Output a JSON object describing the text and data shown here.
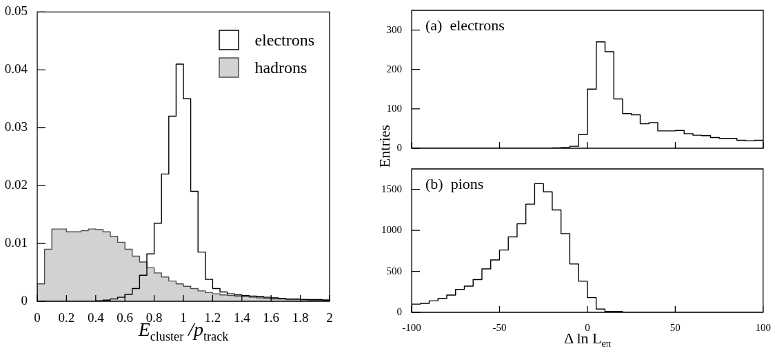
{
  "chart_data": [
    {
      "type": "histogram",
      "xlabel": "E$_{cluster}$ /p$_{track}$",
      "legend": "top right",
      "grid": false,
      "bins": [
        0,
        0.05,
        0.1,
        0.15,
        0.2,
        0.25,
        0.3,
        0.35,
        0.4,
        0.45,
        0.5,
        0.55,
        0.6,
        0.65,
        0.7,
        0.75,
        0.8,
        0.85,
        0.9,
        0.95,
        1,
        1.05,
        1.1,
        1.15,
        1.2,
        1.25,
        1.3,
        1.35,
        1.4,
        1.45,
        1.5,
        1.55,
        1.6,
        1.65,
        1.7,
        1.75,
        1.8,
        1.85,
        1.9,
        1.95,
        2
      ],
      "series": [
        {
          "name": "electrons",
          "color": "#000000",
          "values": [
            0,
            0,
            0,
            0,
            0,
            0,
            0,
            0,
            0.0001,
            0.0002,
            0.0004,
            0.0007,
            0.0012,
            0.0022,
            0.0045,
            0.0082,
            0.0135,
            0.022,
            0.032,
            0.041,
            0.035,
            0.019,
            0.0085,
            0.0038,
            0.0022,
            0.0016,
            0.0013,
            0.0011,
            0.001,
            0.0009,
            0.0008,
            0.0007,
            0.0006,
            0.0005,
            0.0004,
            0.0004,
            0.0003,
            0.0003,
            0.0003,
            0.0002
          ]
        },
        {
          "name": "hadrons",
          "color": "#4d4d4d",
          "values": [
            0.003,
            0.009,
            0.0125,
            0.0125,
            0.012,
            0.012,
            0.0122,
            0.0125,
            0.0124,
            0.012,
            0.0112,
            0.0102,
            0.009,
            0.0078,
            0.0068,
            0.0058,
            0.0049,
            0.0042,
            0.0035,
            0.003,
            0.0026,
            0.0022,
            0.0018,
            0.0015,
            0.0013,
            0.0011,
            0.001,
            0.0009,
            0.0008,
            0.0007,
            0.0006,
            0.0005,
            0.0004,
            0.0004,
            0.0003,
            0.0003,
            0.0003,
            0.0002,
            0.0002,
            0.0002
          ]
        }
      ],
      "xlim": [
        0,
        2
      ],
      "xticks": [
        0,
        0.2,
        0.4,
        0.6,
        0.8,
        1,
        1.2,
        1.4,
        1.6,
        1.8,
        2
      ],
      "ylim": [
        0,
        0.05
      ],
      "yticks": [
        0,
        0.01,
        0.02,
        0.03,
        0.04,
        0.05
      ]
    },
    {
      "type": "histogram",
      "ylabel": "Entries",
      "annotations": [
        "(a)  electrons"
      ],
      "grid": false,
      "tick_labels": "y",
      "bins": [
        -100,
        -95,
        -90,
        -85,
        -80,
        -75,
        -70,
        -65,
        -60,
        -55,
        -50,
        -45,
        -40,
        -35,
        -30,
        -25,
        -20,
        -15,
        -10,
        -5,
        0,
        5,
        10,
        15,
        20,
        25,
        30,
        35,
        40,
        45,
        50,
        55,
        60,
        65,
        70,
        75,
        80,
        85,
        90,
        95,
        100
      ],
      "color": "#000000",
      "values": [
        0,
        0,
        0,
        0,
        0,
        0,
        0,
        0,
        0,
        0,
        0,
        0,
        0,
        0,
        0,
        0,
        1,
        2,
        5,
        35,
        150,
        270,
        245,
        125,
        88,
        85,
        62,
        65,
        44,
        44,
        45,
        37,
        33,
        32,
        27,
        25,
        25,
        20,
        19,
        20
      ],
      "xlim": [
        -100,
        100
      ],
      "xticks": [
        -100,
        -50,
        0,
        50,
        100
      ],
      "ylim": [
        0,
        350
      ],
      "yticks": [
        0,
        100,
        200,
        300
      ]
    },
    {
      "type": "histogram",
      "xlabel": "Δ ln L$_{eπ}$",
      "annotations": [
        "(b)  pions"
      ],
      "grid": false,
      "bins": [
        -100,
        -95,
        -90,
        -85,
        -80,
        -75,
        -70,
        -65,
        -60,
        -55,
        -50,
        -45,
        -40,
        -35,
        -30,
        -25,
        -20,
        -15,
        -10,
        -5,
        0,
        5,
        10,
        15,
        20,
        25,
        30,
        35,
        40,
        45,
        50,
        55,
        60,
        65,
        70,
        75,
        80,
        85,
        90,
        95,
        100
      ],
      "color": "#000000",
      "values": [
        100,
        110,
        140,
        170,
        210,
        280,
        320,
        400,
        530,
        640,
        760,
        920,
        1080,
        1320,
        1570,
        1470,
        1250,
        960,
        590,
        380,
        180,
        40,
        10,
        10,
        0,
        0,
        0,
        0,
        0,
        0,
        0,
        0,
        0,
        0,
        0,
        0,
        0,
        0,
        0,
        0
      ],
      "xlim": [
        -100,
        100
      ],
      "xticks": [
        -100,
        -50,
        0,
        50,
        100
      ],
      "ylim": [
        0,
        1750
      ],
      "yticks": [
        0,
        500,
        1000,
        1500
      ]
    }
  ]
}
